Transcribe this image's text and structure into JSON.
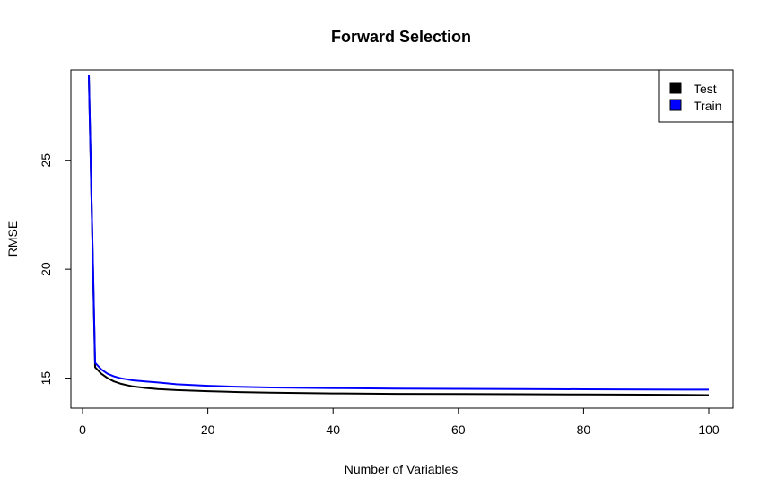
{
  "chart_data": {
    "type": "line",
    "title": "Forward Selection",
    "xlabel": "Number of Variables",
    "ylabel": "RMSE",
    "xlim": [
      1,
      100
    ],
    "ylim": [
      14.2,
      28.9
    ],
    "xticks": [
      "0",
      "20",
      "40",
      "60",
      "80",
      "100"
    ],
    "xtick_values": [
      0,
      20,
      40,
      60,
      80,
      100
    ],
    "yticks": [
      "15",
      "20",
      "25"
    ],
    "ytick_values": [
      15,
      20,
      25
    ],
    "grid": false,
    "legend_position": "top-right",
    "series": [
      {
        "name": "Test",
        "color": "#000000",
        "x": [
          1,
          2,
          3,
          4,
          5,
          6,
          7,
          8,
          10,
          12,
          15,
          20,
          25,
          30,
          40,
          50,
          60,
          70,
          80,
          90,
          100
        ],
        "values": [
          28.9,
          15.5,
          15.2,
          15.0,
          14.85,
          14.75,
          14.68,
          14.62,
          14.55,
          14.5,
          14.45,
          14.4,
          14.36,
          14.33,
          14.3,
          14.28,
          14.27,
          14.26,
          14.25,
          14.24,
          14.22
        ]
      },
      {
        "name": "Train",
        "color": "#0000ff",
        "x": [
          1,
          2,
          3,
          4,
          5,
          6,
          7,
          8,
          10,
          12,
          15,
          20,
          25,
          30,
          40,
          50,
          60,
          70,
          80,
          90,
          100
        ],
        "values": [
          28.9,
          15.7,
          15.4,
          15.2,
          15.08,
          15.0,
          14.95,
          14.9,
          14.85,
          14.8,
          14.72,
          14.65,
          14.6,
          14.57,
          14.54,
          14.52,
          14.51,
          14.5,
          14.49,
          14.48,
          14.47
        ]
      }
    ]
  }
}
